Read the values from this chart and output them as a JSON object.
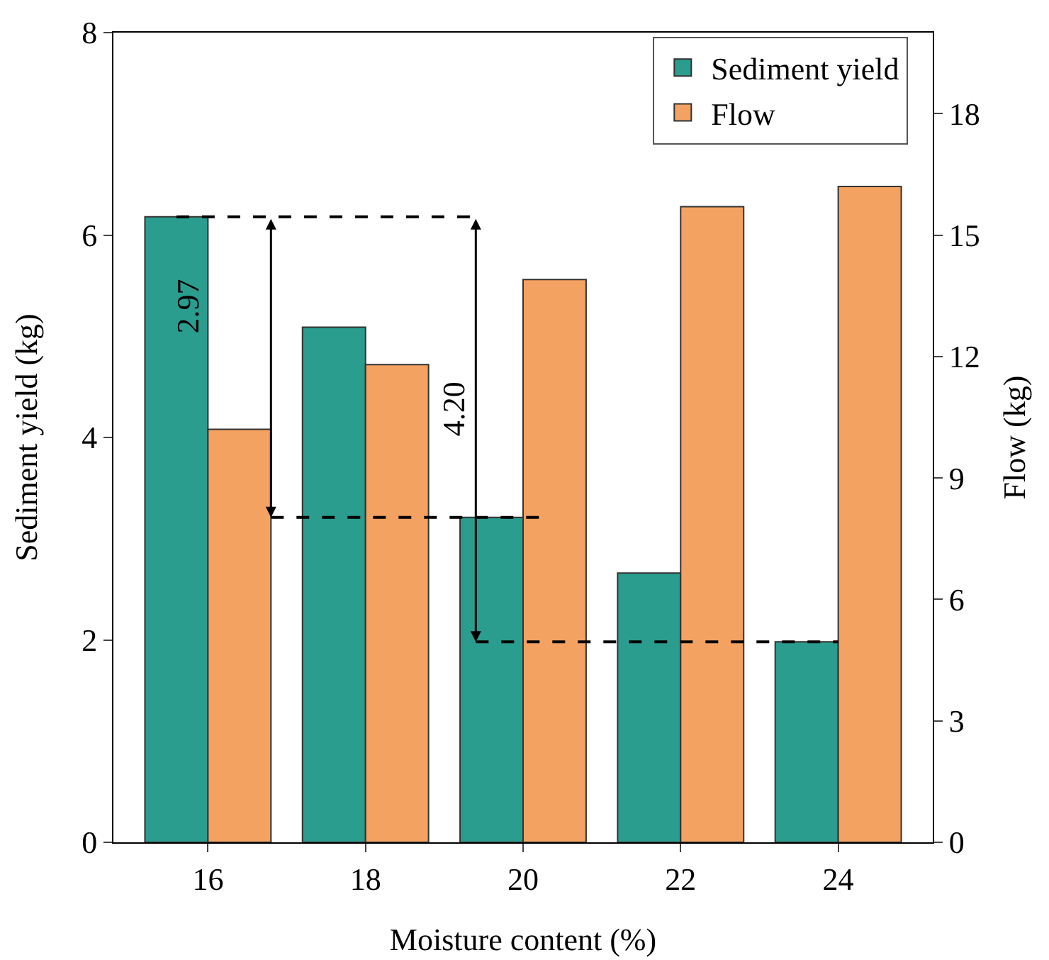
{
  "chart_data": {
    "type": "bar",
    "xlabel": "Moisture content (%)",
    "ylabel": "Sediment yield (kg)",
    "y2label": "Flow (kg)",
    "categories": [
      "16",
      "18",
      "20",
      "22",
      "24"
    ],
    "series": [
      {
        "name": "Sediment yield",
        "color": "#2a9d8f",
        "values": [
          6.18,
          5.09,
          3.21,
          2.66,
          1.98
        ]
      },
      {
        "name": "Flow",
        "color": "#f4a261",
        "axis": "y2",
        "values": [
          10.2,
          11.8,
          13.9,
          15.7,
          16.2
        ]
      }
    ],
    "ylim": [
      0,
      8
    ],
    "yticks": [
      0,
      2,
      4,
      6,
      8
    ],
    "y2lim": [
      0,
      20
    ],
    "y2ticks": [
      0,
      3,
      6,
      9,
      12,
      15,
      18
    ],
    "annotations": [
      "2.97",
      "4.20"
    ],
    "legend": "top right",
    "grid": false
  }
}
